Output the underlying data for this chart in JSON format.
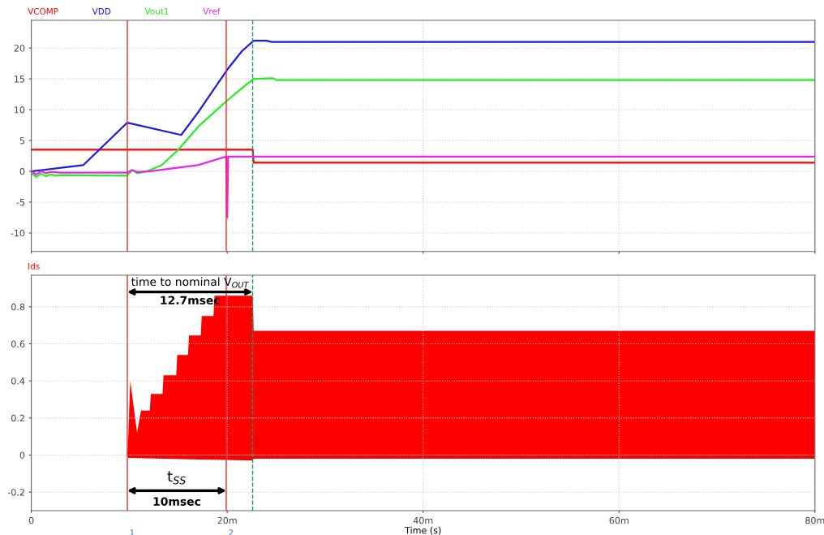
{
  "chart_data": [
    {
      "type": "line",
      "legend": "top",
      "grid": true,
      "tick_labels": "y",
      "xlim": [
        0,
        80
      ],
      "xticks": [
        {
          "value": 0,
          "label": null
        },
        {
          "value": 20,
          "label": null
        },
        {
          "value": 40,
          "label": null
        },
        {
          "value": 60,
          "label": null
        },
        {
          "value": 80,
          "label": null
        }
      ],
      "ylim": [
        -13,
        24.5
      ],
      "yticks": [
        -10,
        -5,
        0,
        5,
        10,
        15,
        20
      ],
      "series": [
        {
          "name": "VCOMP",
          "color": "#ff0000",
          "x": [
            0,
            22.6,
            22.7,
            80
          ],
          "values": [
            3.5,
            3.5,
            1.4,
            1.4
          ]
        },
        {
          "name": "VDD",
          "color": "#1a1aee",
          "x": [
            0,
            5.3,
            9.8,
            15.3,
            17,
            20,
            21.5,
            22.7,
            24,
            24.5,
            80
          ],
          "values": [
            0,
            1,
            7.9,
            5.9,
            9.5,
            16.5,
            19.5,
            21.2,
            21.2,
            21.0,
            21.0
          ]
        },
        {
          "name": "Vout1",
          "color": "#22ee22",
          "x": [
            0,
            0.5,
            1,
            1.5,
            2,
            2.5,
            3,
            9.8,
            10.3,
            10.8,
            11.8,
            13.3,
            15,
            17.2,
            20,
            21.5,
            22.7,
            24.7,
            25,
            80
          ],
          "values": [
            -0.3,
            -0.9,
            -0.4,
            -0.8,
            -0.5,
            -0.7,
            -0.6,
            -0.7,
            0.2,
            -0.3,
            0,
            1,
            3.5,
            7.5,
            11.5,
            13.5,
            15,
            15.1,
            14.8,
            14.8
          ]
        },
        {
          "name": "Vref",
          "color": "#ee22ee",
          "x": [
            0,
            0.5,
            1,
            1.5,
            2,
            3,
            9.8,
            10.3,
            10.8,
            12,
            17,
            19.9,
            20,
            20.1,
            22.7,
            80
          ],
          "values": [
            0,
            -0.5,
            0,
            -0.3,
            -0.1,
            -0.2,
            -0.2,
            0.2,
            -0.1,
            0,
            1,
            2.4,
            -7.5,
            2.4,
            2.4,
            2.4
          ]
        }
      ],
      "ref_lines": [
        {
          "axis": "x",
          "value": 9.8,
          "color": "#dd3333",
          "line_style": "solid"
        },
        {
          "axis": "x",
          "value": 19.9,
          "color": "#dd3333",
          "line_style": "solid"
        },
        {
          "axis": "x",
          "value": 22.6,
          "color": "#119966",
          "line_style": "dashed"
        }
      ]
    },
    {
      "type": "area",
      "legend": "top",
      "grid": true,
      "xlabel": "Time (s)",
      "xlim": [
        0,
        80
      ],
      "xticks": [
        0,
        {
          "value": 20,
          "label": "20m"
        },
        {
          "value": 40,
          "label": "40m"
        },
        {
          "value": 60,
          "label": "60m"
        },
        {
          "value": 80,
          "label": "80m"
        }
      ],
      "ylim": [
        -0.3,
        0.97
      ],
      "yticks": [
        -0.2,
        0,
        0.2,
        0.4,
        0.6,
        0.8
      ],
      "series": [
        {
          "name": "Ids",
          "color": "#ff0000",
          "x": [
            0,
            9.8,
            9.9,
            10.1,
            10.8,
            11.2,
            12.1,
            12.2,
            13.4,
            13.5,
            14.8,
            14.9,
            16,
            16.1,
            17.3,
            17.4,
            18.6,
            18.7,
            22.6,
            22.7,
            80
          ],
          "values": [
            0,
            0,
            0.1,
            0.4,
            0.12,
            0.24,
            0.24,
            0.33,
            0.33,
            0.43,
            0.43,
            0.54,
            0.54,
            0.645,
            0.645,
            0.75,
            0.75,
            0.86,
            0.86,
            0.67,
            0.67
          ]
        },
        {
          "color": "#f40000",
          "x": [
            0,
            9.8,
            9.9,
            22.6,
            22.7,
            80
          ],
          "values": [
            0,
            0,
            -0.015,
            -0.03,
            -0.02,
            -0.02
          ]
        }
      ],
      "ref_lines": [
        {
          "axis": "x",
          "value": 9.8,
          "color": "#dd3333",
          "line_style": "solid"
        },
        {
          "axis": "x",
          "value": 19.9,
          "color": "#dd3333",
          "line_style": "solid"
        },
        {
          "axis": "x",
          "value": 22.6,
          "color": "#119966",
          "line_style": "dashed"
        }
      ],
      "annotations": [
        {
          "text": "time to nominal V$_{OUT}$",
          "x": 22.6,
          "y": 0.86
        },
        "12.7msec",
        "t$_{SS}$",
        "10msec",
        {
          "text": "1",
          "x": 9.8,
          "y": -0.3
        },
        {
          "text": "2",
          "x": 19.9,
          "y": -0.3
        }
      ]
    }
  ]
}
